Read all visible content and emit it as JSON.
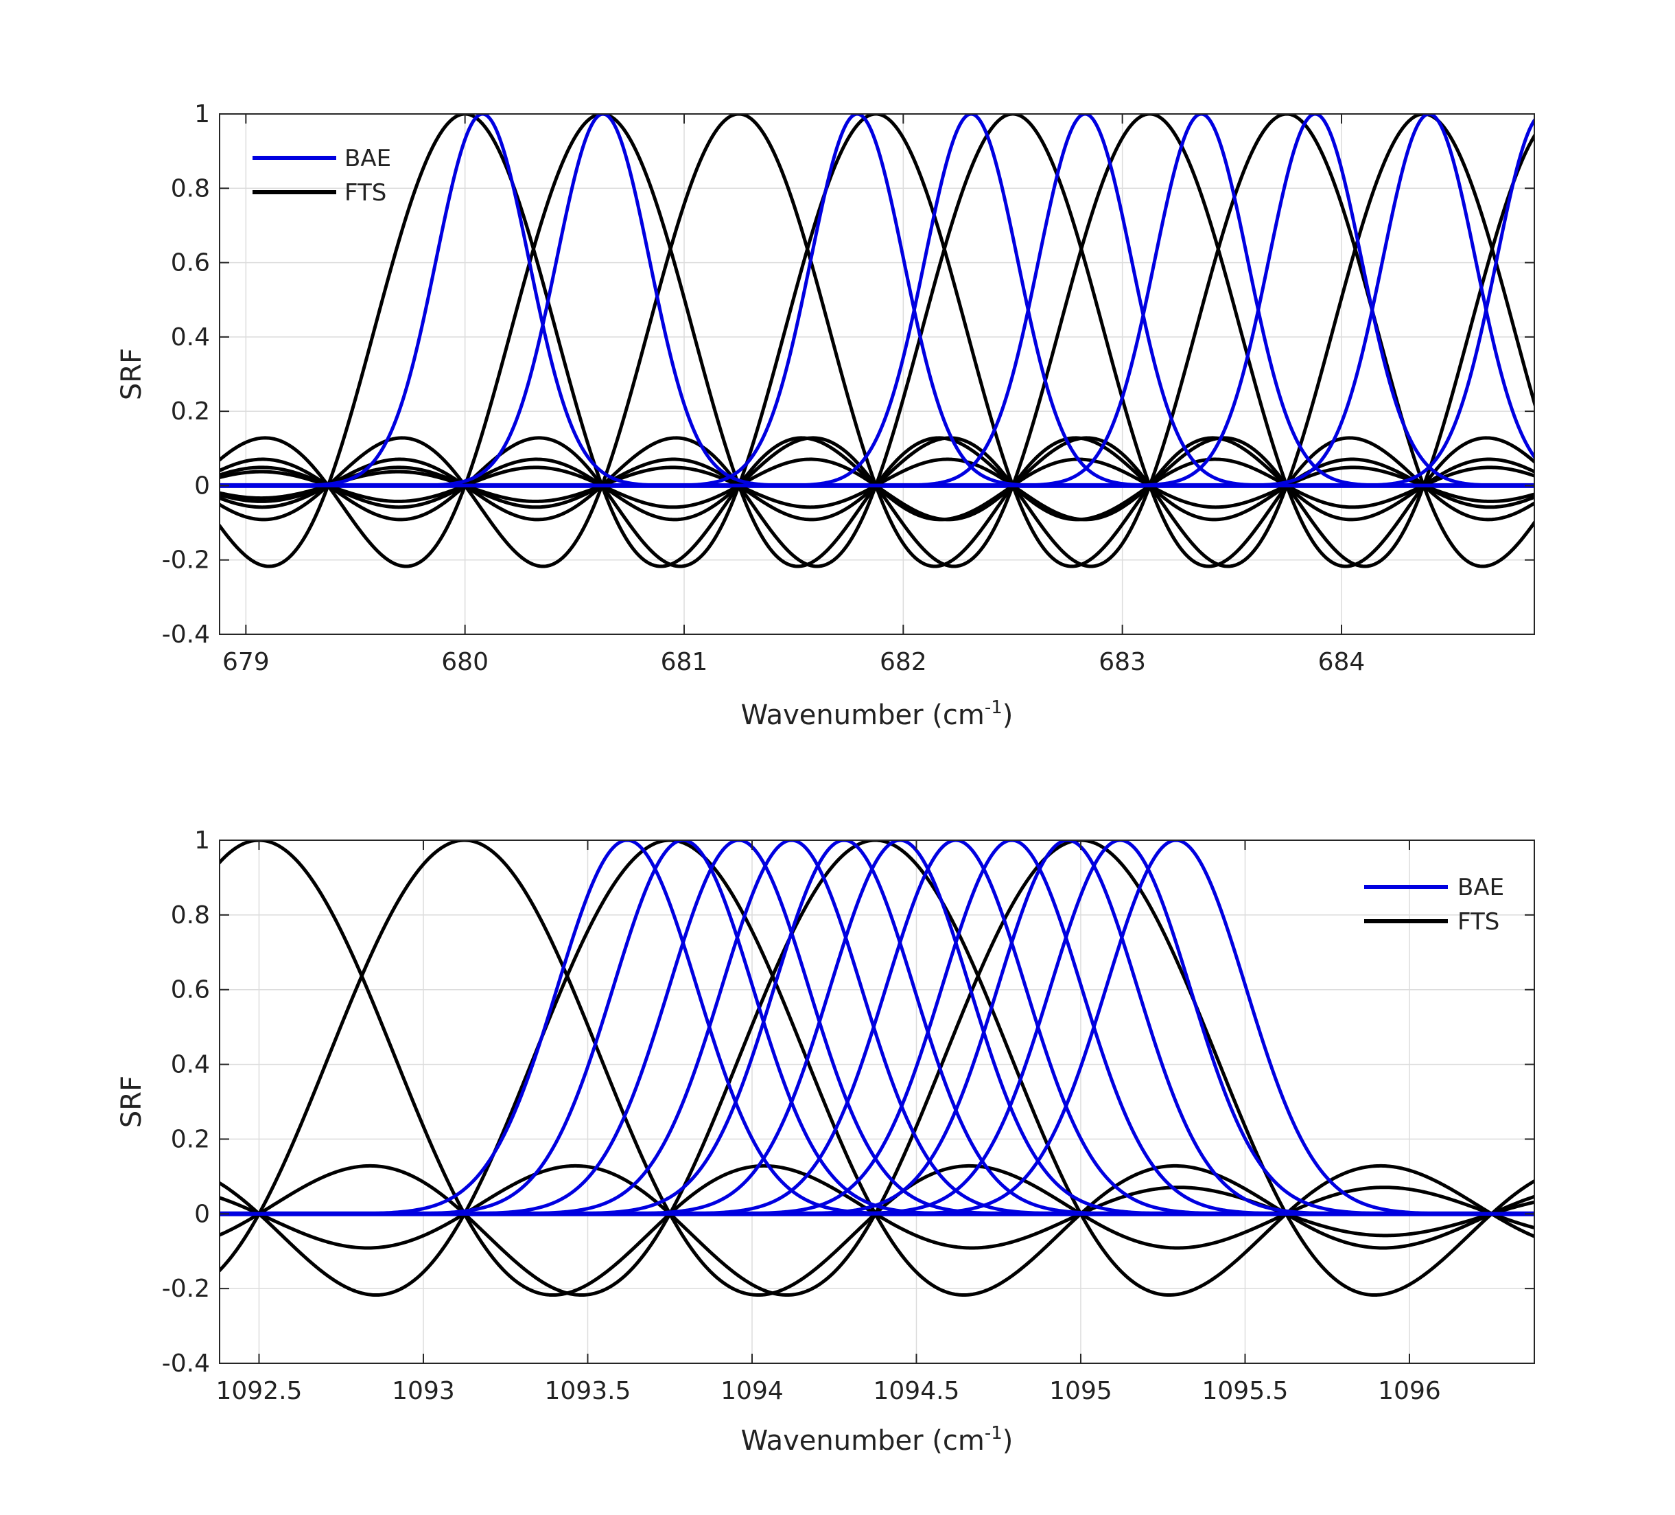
{
  "chart_data": [
    {
      "type": "line",
      "ylabel": "SRF",
      "xlabel": "Wavenumber (cm",
      "xlabel_sup": "-1",
      "xlabel_close": ")",
      "xlim": [
        678.88,
        684.88
      ],
      "ylim": [
        -0.4,
        1
      ],
      "xticks": [
        679,
        680,
        681,
        682,
        683,
        684
      ],
      "xtick_labels": [
        "679",
        "680",
        "681",
        "682",
        "683",
        "684"
      ],
      "yticks": [
        -0.4,
        -0.2,
        0,
        0.2,
        0.4,
        0.6,
        0.8,
        1
      ],
      "ytick_labels": [
        "-0.4",
        "-0.2",
        "0",
        "0.2",
        "0.4",
        "0.6",
        "0.8",
        "1"
      ],
      "grid": true,
      "legend_position": "top-left",
      "series": [
        {
          "name": "BAE",
          "color": "#0000e0",
          "shape": "gaussian",
          "fwhm": 0.5,
          "centers": [
            680.08,
            680.63,
            681.79,
            682.31,
            682.83,
            683.36,
            683.88,
            684.4,
            684.92
          ]
        },
        {
          "name": "FTS",
          "color": "#000000",
          "shape": "sinc",
          "channel_spacing": 0.625,
          "centers": [
            680.0,
            680.625,
            681.25,
            681.875,
            682.5,
            683.125,
            683.75,
            684.375,
            685.0
          ]
        }
      ]
    },
    {
      "type": "line",
      "ylabel": "SRF",
      "xlabel": "Wavenumber (cm",
      "xlabel_sup": "-1",
      "xlabel_close": ")",
      "xlim": [
        1092.38,
        1096.38
      ],
      "ylim": [
        -0.4,
        1
      ],
      "xticks": [
        1092.5,
        1093,
        1093.5,
        1094,
        1094.5,
        1095,
        1095.5,
        1096
      ],
      "xtick_labels": [
        "1092.5",
        "1093",
        "1093.5",
        "1094",
        "1094.5",
        "1095",
        "1095.5",
        "1096"
      ],
      "yticks": [
        -0.4,
        -0.2,
        0,
        0.2,
        0.4,
        0.6,
        0.8,
        1
      ],
      "ytick_labels": [
        "-0.4",
        "-0.2",
        "0",
        "0.2",
        "0.4",
        "0.6",
        "0.8",
        "1"
      ],
      "grid": true,
      "legend_position": "top-right",
      "series": [
        {
          "name": "BAE",
          "color": "#0000e0",
          "shape": "gaussian",
          "fwhm": 0.5,
          "centers": [
            1093.62,
            1093.79,
            1093.96,
            1094.12,
            1094.28,
            1094.45,
            1094.62,
            1094.79,
            1094.96,
            1095.12,
            1095.29
          ]
        },
        {
          "name": "FTS",
          "color": "#000000",
          "shape": "sinc",
          "channel_spacing": 0.625,
          "centers": [
            1092.5,
            1093.125,
            1093.75,
            1094.375,
            1095.0
          ]
        }
      ]
    }
  ]
}
